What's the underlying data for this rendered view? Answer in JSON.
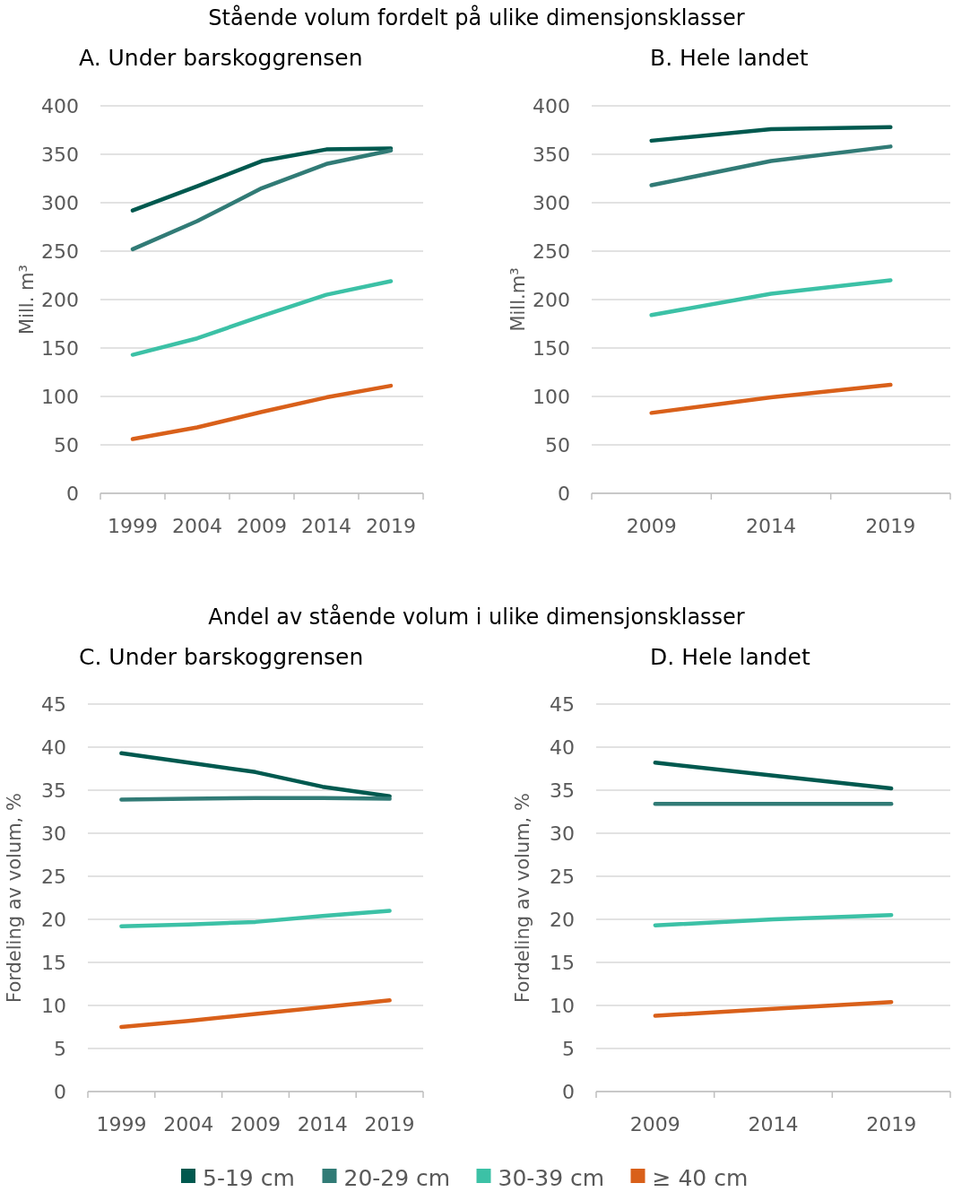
{
  "chart_data": [
    {
      "type": "line",
      "title": "Stående volum fordelt på ulike dimensjonsklasser",
      "subtitle": "A. Under barskoggrensen",
      "ylabel": "Mill. m³",
      "categories": [
        "1999",
        "2004",
        "2009",
        "2014",
        "2019"
      ],
      "ylim": [
        0,
        400
      ],
      "yticks": [
        0,
        50,
        100,
        150,
        200,
        250,
        300,
        350,
        400
      ],
      "grid": "y",
      "series": [
        {
          "color": "#00594f",
          "values": [
            292,
            317,
            343,
            355,
            356
          ]
        },
        {
          "color": "#317b76",
          "values": [
            252,
            281,
            315,
            340,
            354
          ]
        },
        {
          "color": "#3cc1a6",
          "values": [
            143,
            160,
            183,
            205,
            219
          ]
        },
        {
          "color": "#d9601a",
          "values": [
            56,
            68,
            84,
            99,
            111
          ]
        }
      ]
    },
    {
      "type": "line",
      "subtitle": "B. Hele landet",
      "ylabel": "Mill.m³",
      "categories": [
        "2009",
        "2014",
        "2019"
      ],
      "ylim": [
        0,
        400
      ],
      "yticks": [
        0,
        50,
        100,
        150,
        200,
        250,
        300,
        350,
        400
      ],
      "grid": "y",
      "series": [
        {
          "color": "#00594f",
          "values": [
            364,
            376,
            378
          ]
        },
        {
          "color": "#317b76",
          "values": [
            318,
            343,
            358
          ]
        },
        {
          "color": "#3cc1a6",
          "values": [
            184,
            206,
            220
          ]
        },
        {
          "color": "#d9601a",
          "values": [
            83,
            99,
            112
          ]
        }
      ]
    },
    {
      "type": "line",
      "title": "Andel av stående volum i ulike dimensjonsklasser",
      "subtitle": "C. Under barskoggrensen",
      "ylabel": "Fordeling av volum, %",
      "categories": [
        "1999",
        "2004",
        "2009",
        "2014",
        "2019"
      ],
      "ylim": [
        0,
        45
      ],
      "yticks": [
        0,
        5,
        10,
        15,
        20,
        25,
        30,
        35,
        40,
        45
      ],
      "grid": "y",
      "legend": "bottom",
      "series": [
        {
          "name": "5-19 cm",
          "color": "#00594f",
          "values": [
            39.3,
            38.2,
            37.1,
            35.4,
            34.3
          ]
        },
        {
          "name": "20-29 cm",
          "color": "#317b76",
          "values": [
            33.9,
            34.0,
            34.1,
            34.1,
            34.0
          ]
        },
        {
          "name": "30-39 cm",
          "color": "#3cc1a6",
          "values": [
            19.2,
            19.4,
            19.7,
            20.4,
            21.0
          ]
        },
        {
          "name": "≥ 40 cm",
          "color": "#d9601a",
          "values": [
            7.5,
            8.2,
            9.0,
            9.8,
            10.6
          ]
        }
      ]
    },
    {
      "type": "line",
      "subtitle": "D. Hele landet",
      "ylabel": "Fordeling av volum, %",
      "categories": [
        "2009",
        "2014",
        "2019"
      ],
      "ylim": [
        0,
        45
      ],
      "yticks": [
        0,
        5,
        10,
        15,
        20,
        25,
        30,
        35,
        40,
        45
      ],
      "grid": "y",
      "series": [
        {
          "color": "#00594f",
          "values": [
            38.2,
            36.7,
            35.2
          ]
        },
        {
          "color": "#317b76",
          "values": [
            33.4,
            33.4,
            33.4
          ]
        },
        {
          "color": "#3cc1a6",
          "values": [
            19.3,
            20.0,
            20.5
          ]
        },
        {
          "color": "#d9601a",
          "values": [
            8.8,
            9.6,
            10.4
          ]
        }
      ]
    }
  ]
}
